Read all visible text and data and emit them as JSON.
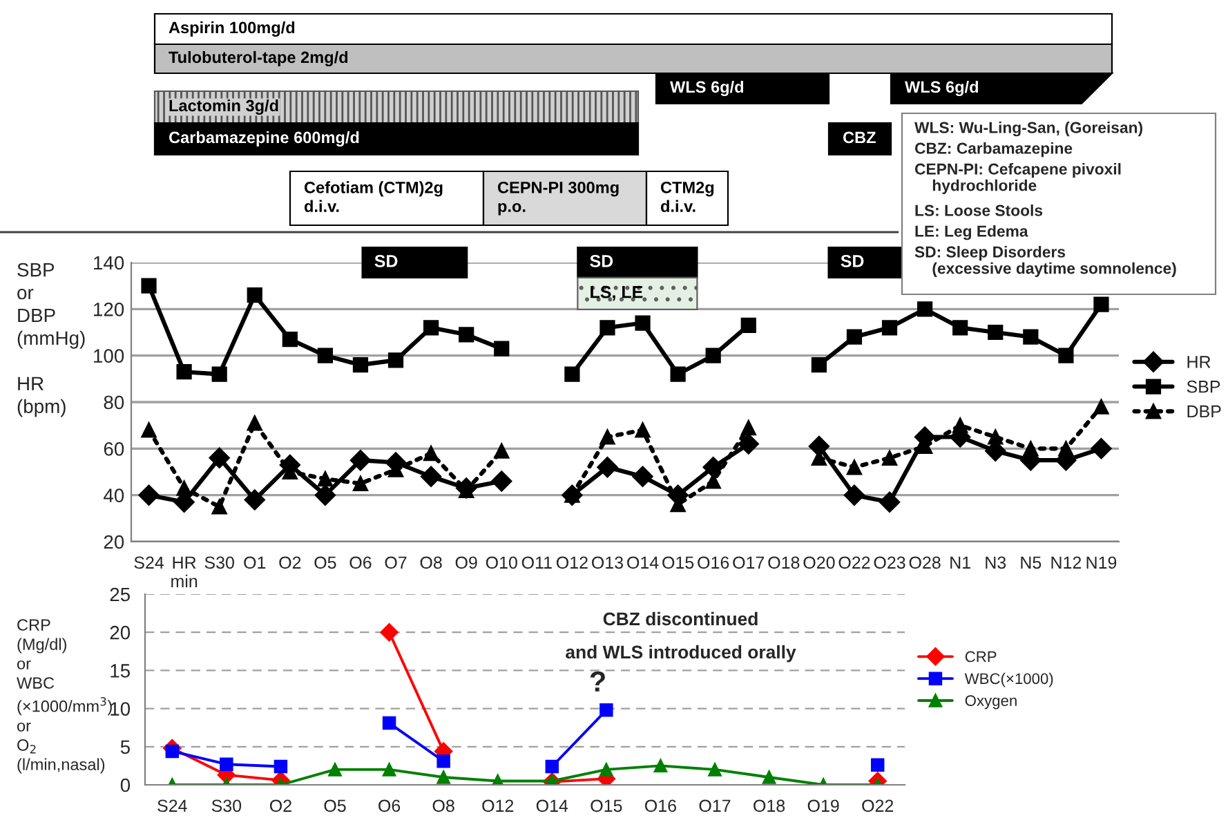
{
  "chart_data": [
    {
      "type": "other",
      "annotations": [
        "Aspirin 100mg/d",
        "Tulobuterol-tape 2mg/d",
        "WLS 6g/d",
        "WLS 6g/d",
        "Lactomin 3g/d",
        "Carbamazepine 600mg/d",
        "CBZ",
        "Cefotiam (CTM)2g\nd.i.v.",
        "CEPN-PI 300mg\np.o.",
        "CTM2g\nd.i.v.",
        "WLS: Wu-Ling-San, (Goreisan)",
        "CBZ: Carbamazepine",
        "CEPN-PI: Cefcapene pivoxil\n    hydrochloride",
        "LS: Loose Stools",
        "LE: Leg Edema",
        "SD: Sleep Disorders\n    (excessive daytime somnolence)"
      ]
    },
    {
      "type": "line",
      "ylabel": "SBP\nor\nDBP\n(mmHg)\n\nHR\n(bpm)",
      "categories": [
        "S24",
        "HR\nmin",
        "S30",
        "O1",
        "O2",
        "O5",
        "O6",
        "O7",
        "O8",
        "O9",
        "O10",
        "O11",
        "O12",
        "O13",
        "O14",
        "O15",
        "O16",
        "O17",
        "O18",
        "O20",
        "O22",
        "O23",
        "O28",
        "N1",
        "N3",
        "N5",
        "N12",
        "N19"
      ],
      "series": [
        {
          "name": "HR",
          "color": "#000000",
          "marker": "diamond",
          "line_style": "solid",
          "values": [
            40,
            37,
            56,
            38,
            53,
            40,
            55,
            54,
            48,
            43,
            46,
            null,
            40,
            52,
            48,
            40,
            52,
            62,
            null,
            61,
            40,
            37,
            65,
            65,
            59,
            55,
            55,
            60
          ]
        },
        {
          "name": "SBP",
          "color": "#000000",
          "marker": "square",
          "line_style": "solid",
          "values": [
            130,
            93,
            92,
            126,
            107,
            100,
            96,
            98,
            112,
            109,
            103,
            null,
            92,
            112,
            114,
            92,
            100,
            113,
            null,
            96,
            108,
            112,
            120,
            112,
            110,
            108,
            100,
            122
          ]
        },
        {
          "name": "DBP",
          "color": "#000000",
          "marker": "triangle",
          "line_style": "dotted",
          "values": [
            68,
            43,
            35,
            71,
            50,
            47,
            45,
            51,
            58,
            42,
            59,
            null,
            40,
            65,
            68,
            36,
            46,
            69,
            null,
            56,
            52,
            56,
            61,
            70,
            65,
            60,
            60,
            78
          ]
        }
      ],
      "ylim": [
        20,
        140
      ],
      "yticks": [
        20,
        40,
        60,
        80,
        100,
        120,
        140
      ],
      "grid": "y",
      "legend": "right",
      "annotations": [
        "SD",
        "SD",
        "LS, LE",
        "SD"
      ]
    },
    {
      "type": "line",
      "ylabel": "CRP\n(Mg/dl)\nor\nWBC\n(×1000/mm$^{3}$)\nor\nO$_{2}$\n(l/min,nasal)",
      "categories": [
        "S24",
        "S30",
        "O2",
        "O5",
        "O6",
        "O8",
        "O12",
        "O14",
        "O15",
        "O16",
        "O17",
        "O18",
        "O19",
        "O22"
      ],
      "series": [
        {
          "name": "CRP",
          "color": "#ff0000",
          "marker": "diamond",
          "line_style": "solid",
          "values": [
            4.8,
            1.3,
            0.6,
            null,
            20,
            4.4,
            null,
            0.4,
            0.8,
            null,
            null,
            null,
            null,
            0.5
          ]
        },
        {
          "name": "WBC(×1000)",
          "color": "#0000ff",
          "marker": "square",
          "line_style": "solid",
          "values": [
            4.4,
            2.7,
            2.4,
            null,
            8.1,
            3.1,
            null,
            2.4,
            9.8,
            null,
            null,
            null,
            null,
            2.6
          ]
        },
        {
          "name": "Oxygen",
          "color": "#008000",
          "marker": "triangle",
          "line_style": "solid",
          "values": [
            0,
            0,
            0,
            2,
            2,
            1,
            0.5,
            0.5,
            2,
            2.5,
            2,
            1,
            0,
            0
          ]
        }
      ],
      "ylim": [
        0,
        25
      ],
      "yticks": [
        0,
        5,
        10,
        15,
        20,
        25
      ],
      "grid": "y",
      "legend": "right",
      "annotations": [
        "CBZ discontinued",
        "and WLS introduced orally",
        "?"
      ]
    }
  ]
}
